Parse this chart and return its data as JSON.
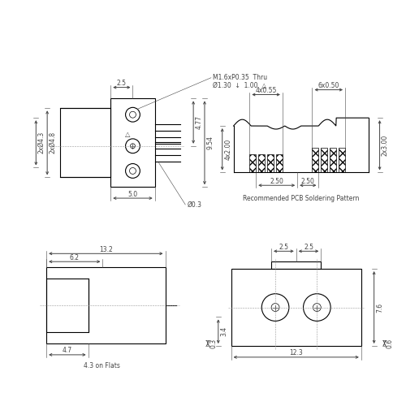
{
  "bg_color": "#ffffff",
  "line_color": "#000000",
  "dim_color": "#444444",
  "tv": {
    "width_top": "2.5",
    "thread": "M1.6xP0.35  Thru",
    "hole_dim": "Ø1.30  ↓  1.00",
    "roughness": "△",
    "height1": "4.77",
    "height2": "9.54",
    "pin_dia": "Ø0.3",
    "bottom_width": "5.0",
    "left_dia1": "2xØ4.8",
    "left_dia2": "2xØ4.3"
  },
  "pcb": {
    "top_left": "4x0.55",
    "top_right": "6x0.50",
    "left_height": "4x2.00",
    "right_height": "2x3.00",
    "bottom1": "2.50",
    "bottom2": "2.50",
    "caption": "Recommended PCB Soldering Pattern"
  },
  "sv": {
    "total_width": "13.2",
    "left_block": "6.2",
    "bottom_block": "4.7",
    "flats": "4.3 on Flats"
  },
  "fv": {
    "top_left": "2.5",
    "top_right": "2.5",
    "left_height1": "3.4",
    "left_height2": "0.3",
    "right_height": "7.6",
    "right_bottom": "0.6",
    "bottom_width": "12.3"
  }
}
